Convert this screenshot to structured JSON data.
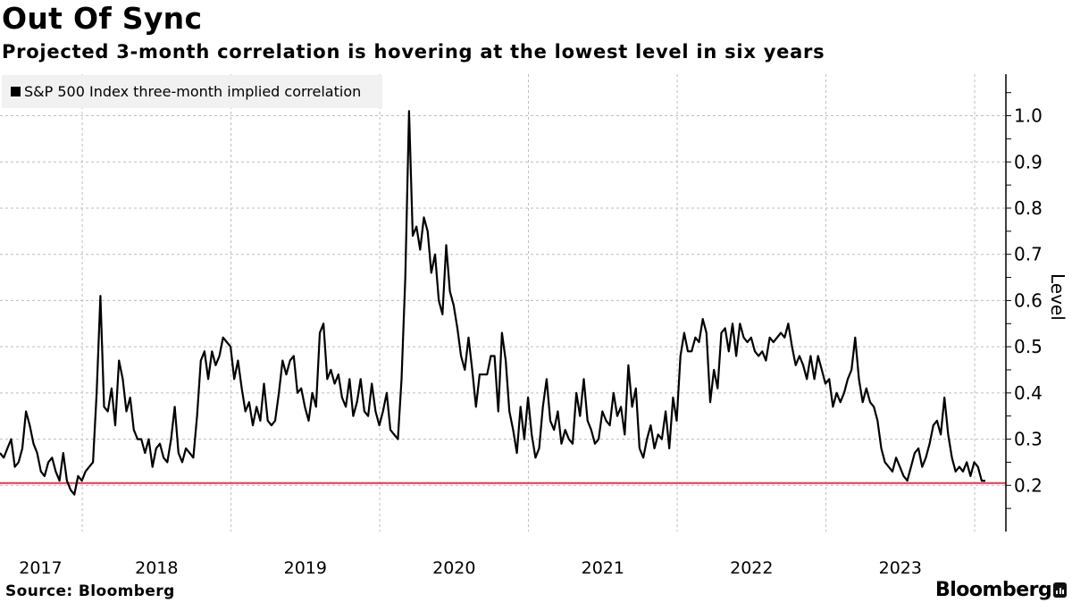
{
  "header": {
    "title": "Out Of Sync",
    "subtitle": "Projected 3-month correlation is hovering at the lowest level in six years"
  },
  "footer": {
    "source": "Source: Bloomberg",
    "brand": "Bloomberg"
  },
  "colors": {
    "series": "#000000",
    "reference_line": "#e8364f",
    "grid": "#bdbdbd",
    "legend_bg": "#f1f1f1"
  },
  "chart_data": {
    "type": "line",
    "title": "Out Of Sync",
    "subtitle": "Projected 3-month correlation is hovering at the lowest level in six years",
    "xlabel": "",
    "ylabel": "Level",
    "legend": {
      "position": "top-left",
      "entries": [
        "S&P 500 Index three-month implied correlation"
      ]
    },
    "grid": true,
    "xlim": [
      2017.447,
      2024.21
    ],
    "ylim": [
      0.1,
      1.09
    ],
    "x_ticks": [
      2018,
      2019,
      2020,
      2021,
      2022,
      2023,
      2024
    ],
    "x_tick_labels": [
      {
        "label": "2017",
        "at": 2017.72
      },
      {
        "label": "2018",
        "at": 2018.5
      },
      {
        "label": "2019",
        "at": 2019.5
      },
      {
        "label": "2020",
        "at": 2020.5
      },
      {
        "label": "2021",
        "at": 2021.5
      },
      {
        "label": "2022",
        "at": 2022.5
      },
      {
        "label": "2023",
        "at": 2023.5
      }
    ],
    "y_ticks": [
      0.2,
      0.3,
      0.4,
      0.5,
      0.6,
      0.7,
      0.8,
      0.9,
      1.0
    ],
    "y_tick_labels": [
      "0.2",
      "0.3",
      "0.4",
      "0.5",
      "0.6",
      "0.7",
      "0.8",
      "0.9",
      "1.0"
    ],
    "y_axis_side": "right",
    "reference_line": 0.205,
    "series": [
      {
        "name": "S&P 500 Index three-month implied correlation",
        "x_start": 2017.447,
        "x_step": 0.025,
        "values": [
          0.27,
          0.26,
          0.28,
          0.3,
          0.24,
          0.25,
          0.28,
          0.36,
          0.33,
          0.29,
          0.27,
          0.23,
          0.22,
          0.25,
          0.26,
          0.23,
          0.21,
          0.27,
          0.21,
          0.19,
          0.18,
          0.22,
          0.21,
          0.23,
          0.24,
          0.25,
          0.4,
          0.61,
          0.37,
          0.36,
          0.41,
          0.33,
          0.47,
          0.43,
          0.36,
          0.39,
          0.32,
          0.3,
          0.3,
          0.27,
          0.3,
          0.24,
          0.28,
          0.29,
          0.26,
          0.25,
          0.3,
          0.37,
          0.27,
          0.25,
          0.28,
          0.27,
          0.26,
          0.35,
          0.47,
          0.49,
          0.43,
          0.49,
          0.46,
          0.48,
          0.52,
          0.51,
          0.5,
          0.43,
          0.47,
          0.41,
          0.36,
          0.38,
          0.33,
          0.37,
          0.34,
          0.42,
          0.34,
          0.33,
          0.34,
          0.4,
          0.47,
          0.44,
          0.47,
          0.48,
          0.4,
          0.41,
          0.37,
          0.34,
          0.4,
          0.37,
          0.53,
          0.55,
          0.43,
          0.45,
          0.42,
          0.44,
          0.39,
          0.37,
          0.43,
          0.35,
          0.38,
          0.43,
          0.36,
          0.35,
          0.42,
          0.36,
          0.33,
          0.36,
          0.4,
          0.32,
          0.31,
          0.3,
          0.43,
          0.65,
          1.01,
          0.74,
          0.76,
          0.71,
          0.78,
          0.75,
          0.66,
          0.7,
          0.6,
          0.57,
          0.72,
          0.62,
          0.59,
          0.54,
          0.48,
          0.45,
          0.52,
          0.45,
          0.37,
          0.44,
          0.44,
          0.44,
          0.48,
          0.48,
          0.36,
          0.53,
          0.47,
          0.36,
          0.32,
          0.27,
          0.37,
          0.3,
          0.39,
          0.31,
          0.26,
          0.28,
          0.37,
          0.43,
          0.34,
          0.32,
          0.36,
          0.29,
          0.32,
          0.3,
          0.29,
          0.4,
          0.35,
          0.43,
          0.34,
          0.32,
          0.29,
          0.3,
          0.36,
          0.34,
          0.33,
          0.4,
          0.35,
          0.37,
          0.31,
          0.46,
          0.37,
          0.41,
          0.28,
          0.26,
          0.3,
          0.33,
          0.28,
          0.31,
          0.3,
          0.36,
          0.28,
          0.39,
          0.34,
          0.48,
          0.53,
          0.49,
          0.49,
          0.52,
          0.51,
          0.56,
          0.53,
          0.38,
          0.45,
          0.41,
          0.53,
          0.54,
          0.49,
          0.55,
          0.48,
          0.55,
          0.52,
          0.51,
          0.52,
          0.49,
          0.48,
          0.49,
          0.47,
          0.52,
          0.51,
          0.52,
          0.53,
          0.52,
          0.55,
          0.5,
          0.46,
          0.48,
          0.46,
          0.43,
          0.48,
          0.43,
          0.48,
          0.45,
          0.42,
          0.43,
          0.37,
          0.4,
          0.38,
          0.4,
          0.43,
          0.45,
          0.52,
          0.43,
          0.38,
          0.41,
          0.38,
          0.37,
          0.34,
          0.28,
          0.25,
          0.24,
          0.23,
          0.26,
          0.24,
          0.22,
          0.21,
          0.24,
          0.27,
          0.28,
          0.24,
          0.26,
          0.29,
          0.33,
          0.34,
          0.31,
          0.39,
          0.31,
          0.26,
          0.23,
          0.24,
          0.23,
          0.25,
          0.22,
          0.25,
          0.24,
          0.21,
          0.21
        ]
      }
    ]
  }
}
